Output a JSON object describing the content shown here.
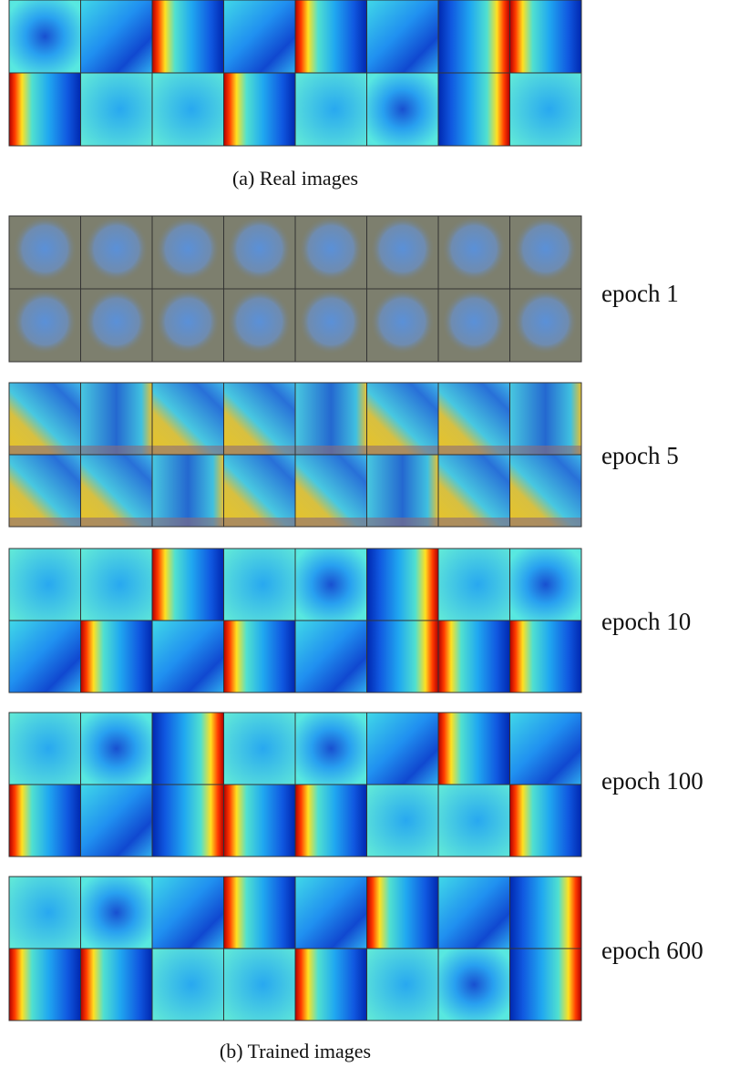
{
  "figure": {
    "real_caption": "(a) Real images",
    "panels": [
      {
        "label": "epoch 1"
      },
      {
        "label": "epoch 5"
      },
      {
        "label": "epoch 10"
      },
      {
        "label": "epoch 100"
      },
      {
        "label": "epoch 600"
      }
    ],
    "trained_caption": "(b) Trained images"
  }
}
